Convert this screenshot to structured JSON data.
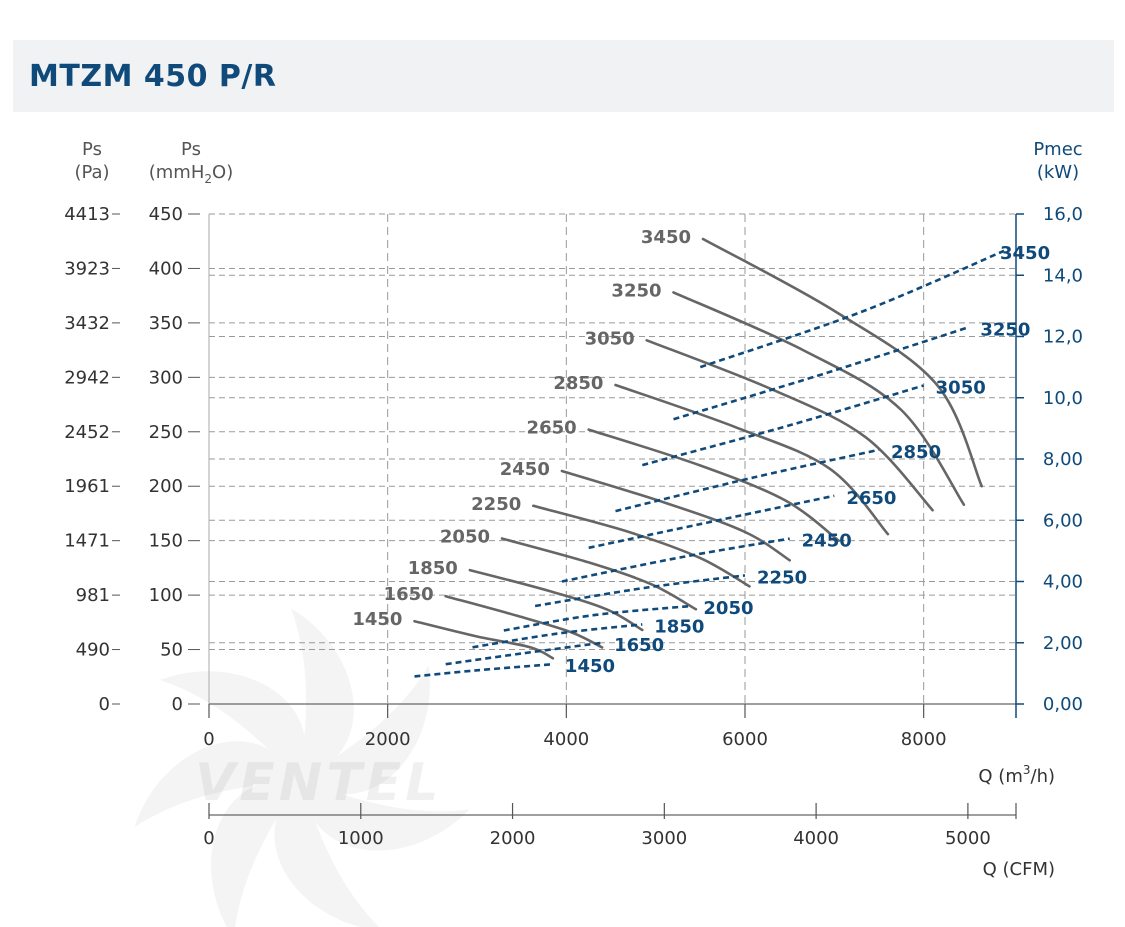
{
  "header": {
    "title": "MTZM 450 P/R"
  },
  "colors": {
    "pressure_curves": "#666666",
    "power_curves": "#0f4a7a",
    "header_bg": "#f0f2f4",
    "title": "#0f4a7a",
    "grid": "#9a9a9a"
  },
  "axes": {
    "ps_pa": {
      "label": "Ps",
      "unit": "(Pa)",
      "ticks": [
        "4413",
        "3923",
        "3432",
        "2942",
        "2452",
        "1961",
        "1471",
        "981",
        "490",
        "0"
      ]
    },
    "ps_mmh2o": {
      "label": "Ps",
      "unit_prefix": "(mmH",
      "unit_sub": "2",
      "unit_suffix": "O)",
      "ticks": [
        "450",
        "400",
        "350",
        "300",
        "250",
        "200",
        "150",
        "100",
        "50",
        "0"
      ]
    },
    "pmec": {
      "label": "Pmec",
      "unit": "(kW)",
      "ticks": [
        "16,0",
        "14,0",
        "12,0",
        "10,0",
        "8,00",
        "6,00",
        "4,00",
        "2,00",
        "0,00"
      ]
    },
    "q_m3h": {
      "label_prefix": "Q (m",
      "label_sup": "3",
      "label_suffix": "/h)",
      "ticks": [
        "0",
        "2000",
        "4000",
        "6000",
        "8000"
      ]
    },
    "q_cfm": {
      "label": "Q (CFM)",
      "ticks": [
        "0",
        "1000",
        "2000",
        "3000",
        "4000",
        "5000"
      ]
    }
  },
  "watermark": "VENTEL",
  "chart_data": {
    "type": "line",
    "title": "MTZM 450 P/R",
    "xlabel": "Q (m3/h)",
    "ylabel": "Ps (mmH2O)",
    "y2label": "Pmec (kW)",
    "xlim": [
      0,
      8900
    ],
    "ylim": [
      0,
      450
    ],
    "y2lim": [
      0,
      16
    ],
    "grid": true,
    "pressure_series": [
      {
        "name": "1450",
        "points": [
          [
            2300,
            76
          ],
          [
            3000,
            62
          ],
          [
            3600,
            52
          ],
          [
            3850,
            42
          ]
        ]
      },
      {
        "name": "1650",
        "points": [
          [
            2650,
            99
          ],
          [
            3450,
            81
          ],
          [
            4050,
            66
          ],
          [
            4400,
            52
          ]
        ]
      },
      {
        "name": "1850",
        "points": [
          [
            2920,
            123
          ],
          [
            3800,
            104
          ],
          [
            4450,
            87
          ],
          [
            4850,
            68
          ]
        ]
      },
      {
        "name": "2050",
        "points": [
          [
            3280,
            152
          ],
          [
            4250,
            130
          ],
          [
            4950,
            110
          ],
          [
            5450,
            87
          ]
        ]
      },
      {
        "name": "2250",
        "points": [
          [
            3630,
            182
          ],
          [
            4700,
            158
          ],
          [
            5500,
            134
          ],
          [
            6050,
            108
          ]
        ]
      },
      {
        "name": "2450",
        "points": [
          [
            3950,
            214
          ],
          [
            5100,
            185
          ],
          [
            6000,
            158
          ],
          [
            6500,
            132
          ]
        ]
      },
      {
        "name": "2650",
        "points": [
          [
            4250,
            252
          ],
          [
            5500,
            219
          ],
          [
            6450,
            187
          ],
          [
            7050,
            150
          ]
        ]
      },
      {
        "name": "2850",
        "points": [
          [
            4550,
            293
          ],
          [
            5900,
            254
          ],
          [
            6950,
            216
          ],
          [
            7600,
            156
          ]
        ]
      },
      {
        "name": "3050",
        "points": [
          [
            4900,
            334
          ],
          [
            6300,
            289
          ],
          [
            7350,
            245
          ],
          [
            8100,
            178
          ]
        ]
      },
      {
        "name": "3250",
        "points": [
          [
            5200,
            378
          ],
          [
            6650,
            325
          ],
          [
            7750,
            270
          ],
          [
            8450,
            183
          ]
        ]
      },
      {
        "name": "3450",
        "points": [
          [
            5530,
            427
          ],
          [
            7000,
            361
          ],
          [
            8150,
            293
          ],
          [
            8650,
            200
          ]
        ]
      }
    ],
    "power_series": [
      {
        "name": "1450",
        "points": [
          [
            2300,
            0.9
          ],
          [
            3000,
            1.1
          ],
          [
            3850,
            1.3
          ]
        ]
      },
      {
        "name": "1650",
        "points": [
          [
            2650,
            1.3
          ],
          [
            3500,
            1.65
          ],
          [
            4400,
            2.0
          ]
        ]
      },
      {
        "name": "1850",
        "points": [
          [
            2950,
            1.85
          ],
          [
            3900,
            2.3
          ],
          [
            4850,
            2.6
          ]
        ]
      },
      {
        "name": "2050",
        "points": [
          [
            3300,
            2.4
          ],
          [
            4300,
            2.9
          ],
          [
            5400,
            3.2
          ]
        ]
      },
      {
        "name": "2250",
        "points": [
          [
            3650,
            3.2
          ],
          [
            4900,
            3.8
          ],
          [
            6000,
            4.2
          ]
        ]
      },
      {
        "name": "2450",
        "points": [
          [
            3950,
            4.0
          ],
          [
            5300,
            4.8
          ],
          [
            6500,
            5.4
          ]
        ]
      },
      {
        "name": "2650",
        "points": [
          [
            4250,
            5.1
          ],
          [
            5700,
            6.0
          ],
          [
            7000,
            6.8
          ]
        ]
      },
      {
        "name": "2850",
        "points": [
          [
            4550,
            6.3
          ],
          [
            6100,
            7.4
          ],
          [
            7500,
            8.3
          ]
        ]
      },
      {
        "name": "3050",
        "points": [
          [
            4850,
            7.8
          ],
          [
            6500,
            9.1
          ],
          [
            8000,
            10.4
          ]
        ]
      },
      {
        "name": "3250",
        "points": [
          [
            5200,
            9.3
          ],
          [
            6900,
            10.8
          ],
          [
            8500,
            12.3
          ]
        ]
      },
      {
        "name": "3450",
        "points": [
          [
            5500,
            11.0
          ],
          [
            7300,
            12.8
          ],
          [
            8900,
            14.8
          ]
        ]
      }
    ]
  }
}
